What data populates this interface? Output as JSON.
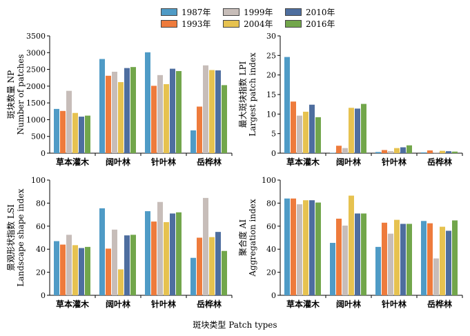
{
  "legend": {
    "items": [
      {
        "label": "1987年",
        "color": "#4f9bc6"
      },
      {
        "label": "1993年",
        "color": "#ee7b3c"
      },
      {
        "label": "1999年",
        "color": "#c7bdb9"
      },
      {
        "label": "2004年",
        "color": "#e6c250"
      },
      {
        "label": "2010年",
        "color": "#4e6e9f"
      },
      {
        "label": "2016年",
        "color": "#72a64b"
      }
    ]
  },
  "x_title": "斑块类型  Patch types",
  "chart_data": [
    {
      "type": "bar",
      "id": "np",
      "ylabel_cn": "斑块数量 NP",
      "ylabel_en": "Number of patches",
      "categories": [
        "草本灌木",
        "阔叶林",
        "针叶林",
        "岳桦林"
      ],
      "ylim": [
        0,
        3500
      ],
      "yticks": [
        0,
        500,
        1000,
        1500,
        2000,
        2500,
        3000,
        3500
      ],
      "series": [
        {
          "name": "1987年",
          "values": [
            1320,
            2810,
            3010,
            680
          ]
        },
        {
          "name": "1993年",
          "values": [
            1260,
            2310,
            2010,
            1390
          ]
        },
        {
          "name": "1999年",
          "values": [
            1860,
            2430,
            2330,
            2620
          ]
        },
        {
          "name": "2004年",
          "values": [
            1200,
            2120,
            2060,
            2480
          ]
        },
        {
          "name": "2010年",
          "values": [
            1090,
            2540,
            2520,
            2470
          ]
        },
        {
          "name": "2016年",
          "values": [
            1120,
            2570,
            2450,
            2030
          ]
        }
      ]
    },
    {
      "type": "bar",
      "id": "lpi",
      "ylabel_cn": "最大斑块指数 LPI",
      "ylabel_en": "Largest patch index",
      "categories": [
        "草本灌木",
        "阔叶林",
        "针叶林",
        "岳桦林"
      ],
      "ylim": [
        0,
        30
      ],
      "yticks": [
        0,
        5,
        10,
        15,
        20,
        25,
        30
      ],
      "series": [
        {
          "name": "1987年",
          "values": [
            24.6,
            0.1,
            0.3,
            0.2
          ]
        },
        {
          "name": "1993年",
          "values": [
            13.2,
            1.9,
            0.8,
            0.7
          ]
        },
        {
          "name": "1999年",
          "values": [
            9.6,
            1.3,
            0.5,
            0.2
          ]
        },
        {
          "name": "2004年",
          "values": [
            10.6,
            11.6,
            1.3,
            0.6
          ]
        },
        {
          "name": "2010年",
          "values": [
            12.4,
            11.4,
            1.5,
            0.5
          ]
        },
        {
          "name": "2016年",
          "values": [
            9.2,
            12.6,
            2.0,
            0.4
          ]
        }
      ]
    },
    {
      "type": "bar",
      "id": "lsi",
      "ylabel_cn": "景观形状指数 LSI",
      "ylabel_en": "Landscape shape index",
      "categories": [
        "草本灌木",
        "阔叶林",
        "针叶林",
        "岳桦林"
      ],
      "ylim": [
        0,
        100
      ],
      "yticks": [
        0,
        20,
        40,
        60,
        80,
        100
      ],
      "series": [
        {
          "name": "1987年",
          "values": [
            47,
            75.5,
            73,
            32.5
          ]
        },
        {
          "name": "1993年",
          "values": [
            44,
            40.5,
            64,
            50
          ]
        },
        {
          "name": "1999年",
          "values": [
            52.5,
            57,
            81,
            84.5
          ]
        },
        {
          "name": "2004年",
          "values": [
            43.5,
            22.5,
            63.5,
            50.5
          ]
        },
        {
          "name": "2010年",
          "values": [
            41,
            52,
            71,
            55
          ]
        },
        {
          "name": "2016年",
          "values": [
            42,
            52.5,
            72,
            38.5
          ]
        }
      ]
    },
    {
      "type": "bar",
      "id": "ai",
      "ylabel_cn": "聚合度 AI",
      "ylabel_en": "Aggregation index",
      "categories": [
        "草本灌木",
        "阔叶林",
        "针叶林",
        "岳桦林"
      ],
      "ylim": [
        0,
        100
      ],
      "yticks": [
        0,
        20,
        40,
        60,
        80,
        100
      ],
      "series": [
        {
          "name": "1987年",
          "values": [
            84,
            45.5,
            42,
            64.5
          ]
        },
        {
          "name": "1993年",
          "values": [
            84,
            66.5,
            63,
            62.5
          ]
        },
        {
          "name": "1999年",
          "values": [
            79,
            60.5,
            53.5,
            32
          ]
        },
        {
          "name": "2004年",
          "values": [
            82.5,
            86.5,
            65.5,
            59.5
          ]
        },
        {
          "name": "2010年",
          "values": [
            82.5,
            71,
            62,
            56
          ]
        },
        {
          "name": "2016年",
          "values": [
            80.5,
            71,
            62,
            65
          ]
        }
      ]
    }
  ]
}
